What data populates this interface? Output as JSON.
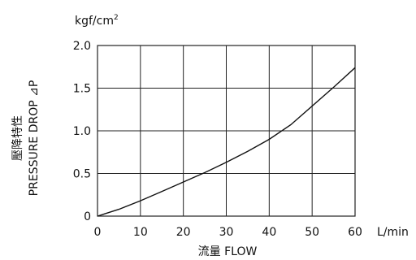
{
  "chart_data": {
    "type": "line",
    "title": "",
    "xlabel": "流量 FLOW",
    "ylabel_line1": "壓降特性",
    "ylabel_line2": "PRESSURE DROP ⊿P",
    "x_unit": "L/min",
    "y_unit": "kgf/cm",
    "y_unit_sup": "2",
    "xlim": [
      0,
      60
    ],
    "ylim": [
      0,
      2.0
    ],
    "x_ticks": [
      "0",
      "10",
      "20",
      "30",
      "40",
      "50",
      "60"
    ],
    "y_ticks": [
      "0",
      "0.5",
      "1.0",
      "1.5",
      "2.0"
    ],
    "grid": true,
    "series": [
      {
        "x": [
          0,
          5,
          10,
          15,
          20,
          25,
          30,
          35,
          40,
          45,
          50,
          55,
          60
        ],
        "y": [
          0,
          0.08,
          0.18,
          0.29,
          0.4,
          0.51,
          0.63,
          0.76,
          0.9,
          1.07,
          1.29,
          1.51,
          1.74
        ]
      }
    ]
  }
}
